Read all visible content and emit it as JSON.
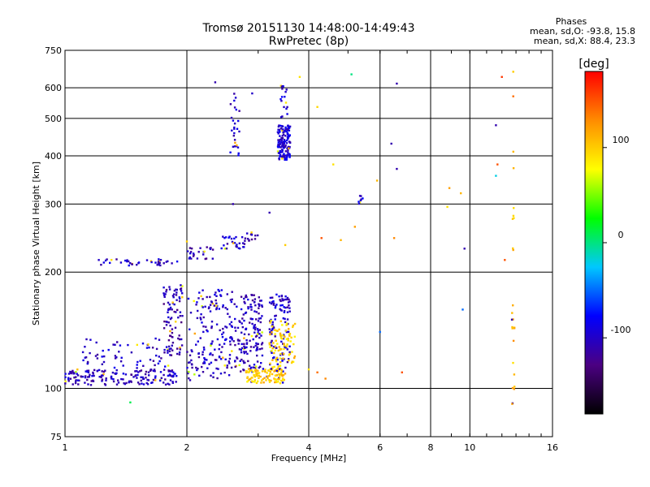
{
  "title_line1": "Tromsø 20151130 14:48:00-14:49:43",
  "title_line2": "RwPretec (8p)",
  "phases": {
    "header": "Phases",
    "line_o": "mean, sd,O: -93.8, 15.8",
    "line_x": "mean, sd,X:  88.4, 23.3"
  },
  "chart_data": {
    "type": "scatter",
    "xlabel": "Frequency [MHz]",
    "ylabel": "Stationary phase Virtual Height [km]",
    "xscale": "log",
    "yscale": "log",
    "xlim": [
      1,
      16
    ],
    "ylim": [
      75,
      750
    ],
    "xticks": [
      1,
      2,
      4,
      6,
      8,
      10,
      16
    ],
    "xtick_labels": [
      "1",
      "2",
      "4",
      "6",
      "8",
      "10",
      "16"
    ],
    "yticks": [
      75,
      100,
      200,
      300,
      400,
      500,
      600,
      750
    ],
    "ytick_labels": [
      "75",
      "100",
      "200",
      "300",
      "400",
      "500",
      "600",
      "750"
    ],
    "grid": true,
    "colorbar": {
      "label": "[deg]",
      "range": [
        -180,
        180
      ],
      "ticks": [
        100,
        0,
        -100
      ],
      "tick_labels": [
        "100",
        "0",
        "-100"
      ],
      "colors": [
        "#000000",
        "#4b0082",
        "#0000ff",
        "#00c8ff",
        "#00ff00",
        "#ffff00",
        "#ff8c00",
        "#ff0000"
      ]
    },
    "clusters": [
      {
        "f": [
          1.0,
          1.9
        ],
        "h": [
          102,
          112
        ],
        "phase": -105,
        "n": 170
      },
      {
        "f": [
          1.1,
          1.9
        ],
        "h": [
          110,
          135
        ],
        "phase": -100,
        "n": 70
      },
      {
        "f": [
          1.75,
          1.95
        ],
        "h": [
          120,
          185
        ],
        "phase": -110,
        "n": 90
      },
      {
        "f": [
          2.0,
          2.6
        ],
        "h": [
          105,
          180
        ],
        "phase": -100,
        "n": 170
      },
      {
        "f": [
          2.6,
          3.1
        ],
        "h": [
          110,
          175
        ],
        "phase": -105,
        "n": 160
      },
      {
        "f": [
          3.2,
          3.6
        ],
        "h": [
          110,
          175
        ],
        "phase": -100,
        "n": 110
      },
      {
        "f": [
          2.8,
          3.5
        ],
        "h": [
          103,
          112
        ],
        "phase": 100,
        "n": 110
      },
      {
        "f": [
          3.2,
          3.7
        ],
        "h": [
          112,
          150
        ],
        "phase": 95,
        "n": 80
      },
      {
        "f": [
          1.2,
          1.9
        ],
        "h": [
          208,
          216
        ],
        "phase": -100,
        "n": 40
      },
      {
        "f": [
          2.0,
          2.4
        ],
        "h": [
          215,
          232
        ],
        "phase": -110,
        "n": 25
      },
      {
        "f": [
          2.4,
          2.8
        ],
        "h": [
          230,
          248
        ],
        "phase": -100,
        "n": 30
      },
      {
        "f": [
          2.8,
          3.0
        ],
        "h": [
          240,
          255
        ],
        "phase": -110,
        "n": 12
      },
      {
        "f": [
          3.35,
          3.6
        ],
        "h": [
          390,
          480
        ],
        "phase": -95,
        "n": 140
      },
      {
        "f": [
          3.4,
          3.55
        ],
        "h": [
          500,
          610
        ],
        "phase": -100,
        "n": 18
      },
      {
        "f": [
          2.55,
          2.7
        ],
        "h": [
          400,
          590
        ],
        "phase": -100,
        "n": 28
      },
      {
        "f": [
          5.3,
          5.5
        ],
        "h": [
          300,
          320
        ],
        "phase": -95,
        "n": 8
      },
      {
        "f": [
          12.7,
          12.9
        ],
        "h": [
          90,
          170
        ],
        "phase": 110,
        "n": 16
      },
      {
        "f": [
          12.7,
          12.9
        ],
        "h": [
          220,
          420
        ],
        "phase": 100,
        "n": 8
      }
    ],
    "points": [
      {
        "f": 1.45,
        "h": 92,
        "phase": 10
      },
      {
        "f": 2.35,
        "h": 620,
        "phase": -110
      },
      {
        "f": 2.9,
        "h": 580,
        "phase": -100
      },
      {
        "f": 3.8,
        "h": 640,
        "phase": 90
      },
      {
        "f": 4.2,
        "h": 535,
        "phase": 95
      },
      {
        "f": 4.6,
        "h": 380,
        "phase": 90
      },
      {
        "f": 5.1,
        "h": 650,
        "phase": 0
      },
      {
        "f": 6.6,
        "h": 615,
        "phase": -110
      },
      {
        "f": 6.4,
        "h": 430,
        "phase": -110
      },
      {
        "f": 6.6,
        "h": 370,
        "phase": -110
      },
      {
        "f": 5.9,
        "h": 345,
        "phase": 110
      },
      {
        "f": 8.9,
        "h": 330,
        "phase": 120
      },
      {
        "f": 9.5,
        "h": 320,
        "phase": 110
      },
      {
        "f": 9.7,
        "h": 230,
        "phase": -110
      },
      {
        "f": 9.6,
        "h": 160,
        "phase": -50
      },
      {
        "f": 8.8,
        "h": 295,
        "phase": 90
      },
      {
        "f": 12.0,
        "h": 640,
        "phase": 160
      },
      {
        "f": 11.6,
        "h": 480,
        "phase": -110
      },
      {
        "f": 11.7,
        "h": 380,
        "phase": 150
      },
      {
        "f": 11.6,
        "h": 355,
        "phase": -20
      },
      {
        "f": 12.2,
        "h": 215,
        "phase": 150
      },
      {
        "f": 6.0,
        "h": 140,
        "phase": -50
      },
      {
        "f": 6.8,
        "h": 110,
        "phase": 150
      },
      {
        "f": 4.3,
        "h": 245,
        "phase": 150
      },
      {
        "f": 4.8,
        "h": 242,
        "phase": 110
      },
      {
        "f": 5.2,
        "h": 262,
        "phase": 120
      },
      {
        "f": 6.5,
        "h": 245,
        "phase": 130
      },
      {
        "f": 3.5,
        "h": 235,
        "phase": 100
      },
      {
        "f": 3.2,
        "h": 285,
        "phase": -110
      },
      {
        "f": 2.0,
        "h": 240,
        "phase": 100
      },
      {
        "f": 2.6,
        "h": 300,
        "phase": -110
      },
      {
        "f": 4.2,
        "h": 110,
        "phase": 140
      },
      {
        "f": 4.4,
        "h": 106,
        "phase": 130
      },
      {
        "f": 4.0,
        "h": 112,
        "phase": 90
      },
      {
        "f": 12.8,
        "h": 660,
        "phase": 100
      },
      {
        "f": 12.8,
        "h": 570,
        "phase": 140
      }
    ]
  }
}
